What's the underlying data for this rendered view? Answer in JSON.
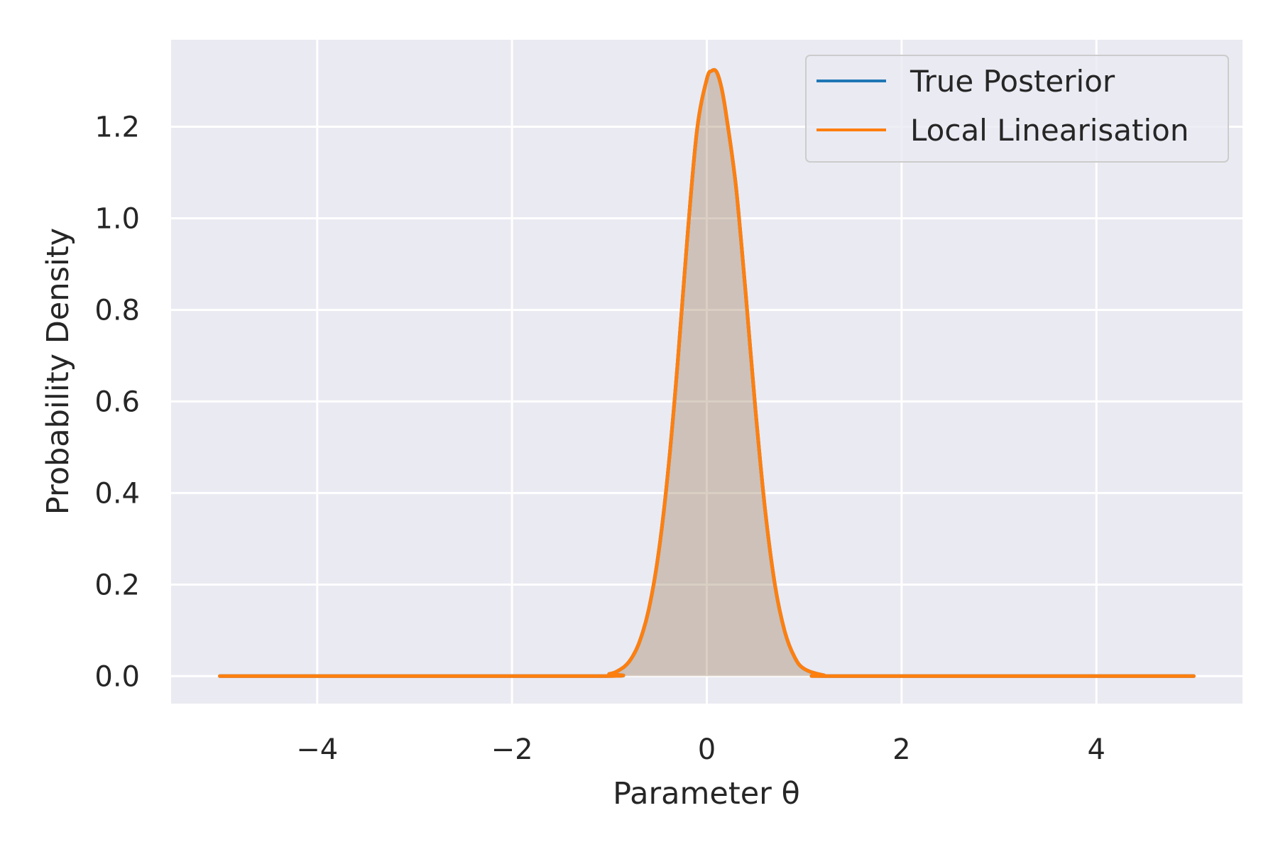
{
  "chart_data": {
    "type": "line",
    "title": "",
    "xlabel": "Parameter θ",
    "ylabel": "Probability Density",
    "xlim": [
      -5.5,
      5.5
    ],
    "ylim": [
      -0.06,
      1.39
    ],
    "x_ticks": [
      -4,
      -2,
      0,
      2,
      4
    ],
    "x_tick_labels": [
      "−4",
      "−2",
      "0",
      "2",
      "4"
    ],
    "y_ticks": [
      0.0,
      0.2,
      0.4,
      0.6,
      0.8,
      1.0,
      1.2
    ],
    "y_tick_labels": [
      "0.0",
      "0.2",
      "0.4",
      "0.6",
      "0.8",
      "1.0",
      "1.2"
    ],
    "grid": true,
    "legend_position": "top-right",
    "background_color": "#eaeaf2",
    "grid_color": "#ffffff",
    "series": [
      {
        "name": "True Posterior",
        "color": "#1f77b4",
        "fill": "#1f77b4",
        "x": [
          -5.0,
          -1.2,
          -1.0,
          -0.9,
          -0.8,
          -0.7,
          -0.6,
          -0.5,
          -0.4,
          -0.3,
          -0.2,
          -0.1,
          0.0,
          0.05,
          0.1,
          0.15,
          0.2,
          0.3,
          0.4,
          0.5,
          0.6,
          0.7,
          0.8,
          0.9,
          1.0,
          1.2,
          1.4,
          5.0
        ],
        "y": [
          0.0,
          0.0,
          0.005,
          0.013,
          0.031,
          0.07,
          0.142,
          0.262,
          0.443,
          0.682,
          0.958,
          1.194,
          1.304,
          1.322,
          1.32,
          1.286,
          1.225,
          1.068,
          0.834,
          0.581,
          0.361,
          0.199,
          0.098,
          0.042,
          0.016,
          0.002,
          0.0,
          0.0
        ]
      },
      {
        "name": "Local Linearisation",
        "color": "#ff7f0e",
        "fill": "#ff7f0e",
        "x": [
          -5.0,
          -1.2,
          -1.0,
          -0.9,
          -0.8,
          -0.7,
          -0.6,
          -0.5,
          -0.4,
          -0.3,
          -0.2,
          -0.1,
          0.0,
          0.05,
          0.1,
          0.15,
          0.2,
          0.3,
          0.4,
          0.5,
          0.6,
          0.7,
          0.8,
          0.9,
          1.0,
          1.2,
          1.4,
          5.0
        ],
        "y": [
          0.0,
          0.0,
          0.005,
          0.013,
          0.031,
          0.07,
          0.142,
          0.262,
          0.443,
          0.682,
          0.958,
          1.194,
          1.304,
          1.322,
          1.32,
          1.286,
          1.225,
          1.068,
          0.834,
          0.581,
          0.361,
          0.199,
          0.098,
          0.042,
          0.016,
          0.002,
          0.0,
          0.0
        ]
      }
    ]
  }
}
